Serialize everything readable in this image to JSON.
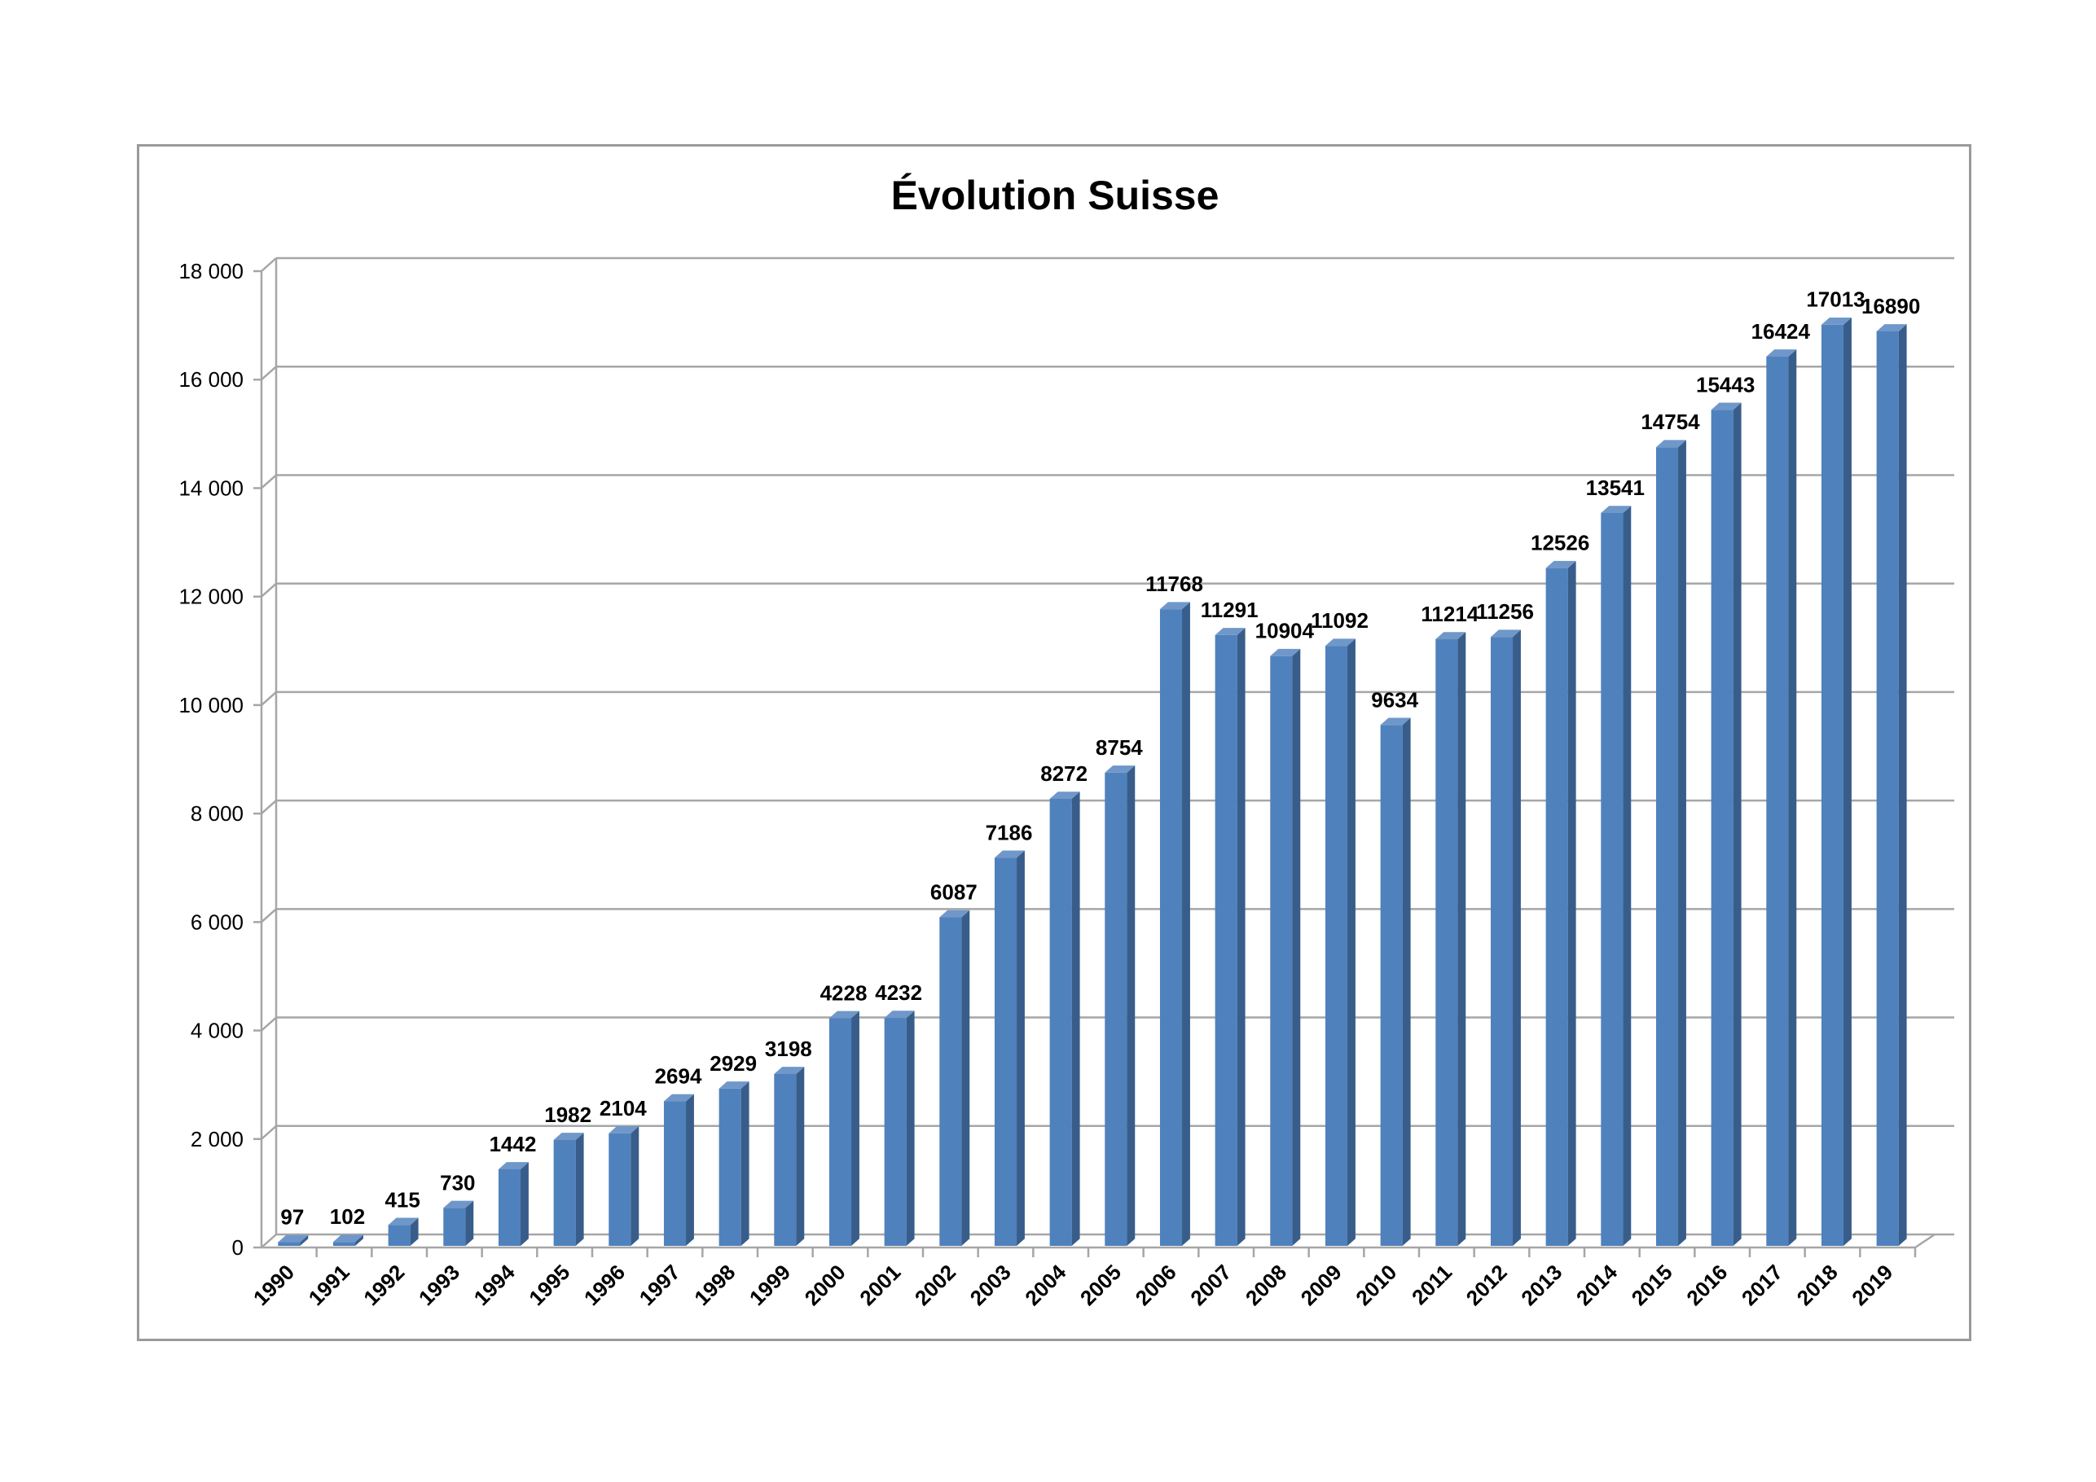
{
  "chart_data": {
    "type": "bar",
    "title": "Évolution Suisse",
    "xlabel": "",
    "ylabel": "",
    "ylim": [
      0,
      18000
    ],
    "yticks": [
      "0",
      "2 000",
      "4 000",
      "6 000",
      "8 000",
      "10 000",
      "12 000",
      "14 000",
      "16 000",
      "18 000"
    ],
    "categories": [
      "1990",
      "1991",
      "1992",
      "1993",
      "1994",
      "1995",
      "1996",
      "1997",
      "1998",
      "1999",
      "2000",
      "2001",
      "2002",
      "2003",
      "2004",
      "2005",
      "2006",
      "2007",
      "2008",
      "2009",
      "2010",
      "2011",
      "2012",
      "2013",
      "2014",
      "2015",
      "2016",
      "2017",
      "2018",
      "2019"
    ],
    "values": [
      97,
      102,
      415,
      730,
      1442,
      1982,
      2104,
      2694,
      2929,
      3198,
      4228,
      4232,
      6087,
      7186,
      8272,
      8754,
      11768,
      11291,
      10904,
      11092,
      9634,
      11214,
      11256,
      12526,
      13541,
      14754,
      15443,
      16424,
      17013,
      16890
    ],
    "data_labels": [
      "97",
      "102",
      "415",
      "730",
      "1442",
      "1982",
      "2104",
      "2694",
      "2929",
      "3198",
      "4228",
      "4232",
      "6087",
      "7186",
      "8272",
      "8754",
      "11768",
      "11291",
      "10904",
      "11092",
      "9634",
      "11214",
      "11256",
      "12526",
      "13541",
      "14754",
      "15443",
      "16424",
      "17013",
      "16890"
    ],
    "grid": true,
    "legend": "none",
    "colors": {
      "bar_front": "#4f81bd",
      "bar_side": "#385d8a",
      "bar_top": "#6f97c9",
      "grid": "#a6a6a6",
      "border": "#9a9a9a"
    }
  }
}
